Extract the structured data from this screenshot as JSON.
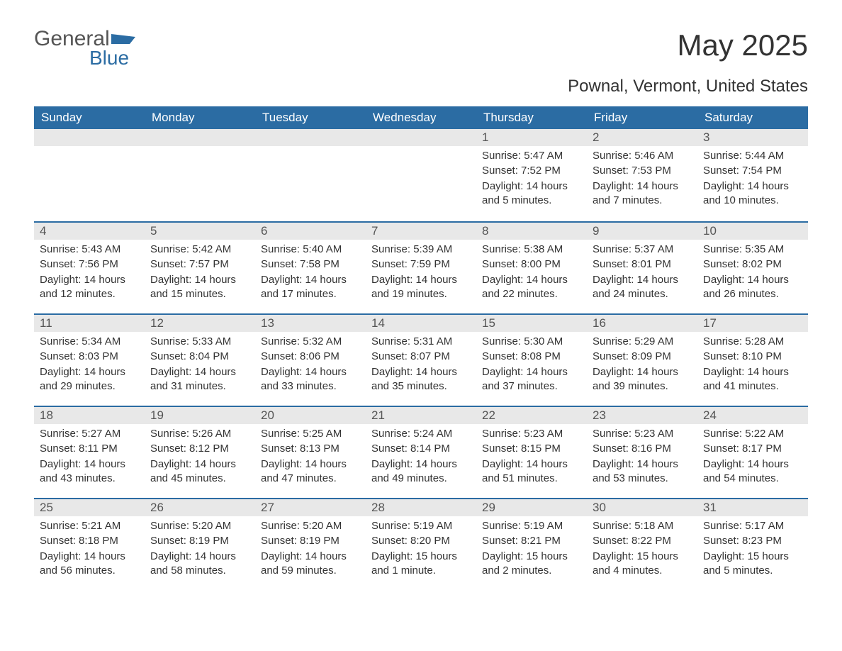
{
  "logo": {
    "text1": "General",
    "text2": "Blue"
  },
  "title": "May 2025",
  "location": "Pownal, Vermont, United States",
  "colors": {
    "brand": "#2b6ca3",
    "daynum_bg": "#e8e8e8",
    "text": "#333333",
    "logo_gray": "#555555"
  },
  "day_headers": [
    "Sunday",
    "Monday",
    "Tuesday",
    "Wednesday",
    "Thursday",
    "Friday",
    "Saturday"
  ],
  "weeks": [
    [
      null,
      null,
      null,
      null,
      {
        "n": "1",
        "sunrise": "5:47 AM",
        "sunset": "7:52 PM",
        "daylight": "14 hours and 5 minutes."
      },
      {
        "n": "2",
        "sunrise": "5:46 AM",
        "sunset": "7:53 PM",
        "daylight": "14 hours and 7 minutes."
      },
      {
        "n": "3",
        "sunrise": "5:44 AM",
        "sunset": "7:54 PM",
        "daylight": "14 hours and 10 minutes."
      }
    ],
    [
      {
        "n": "4",
        "sunrise": "5:43 AM",
        "sunset": "7:56 PM",
        "daylight": "14 hours and 12 minutes."
      },
      {
        "n": "5",
        "sunrise": "5:42 AM",
        "sunset": "7:57 PM",
        "daylight": "14 hours and 15 minutes."
      },
      {
        "n": "6",
        "sunrise": "5:40 AM",
        "sunset": "7:58 PM",
        "daylight": "14 hours and 17 minutes."
      },
      {
        "n": "7",
        "sunrise": "5:39 AM",
        "sunset": "7:59 PM",
        "daylight": "14 hours and 19 minutes."
      },
      {
        "n": "8",
        "sunrise": "5:38 AM",
        "sunset": "8:00 PM",
        "daylight": "14 hours and 22 minutes."
      },
      {
        "n": "9",
        "sunrise": "5:37 AM",
        "sunset": "8:01 PM",
        "daylight": "14 hours and 24 minutes."
      },
      {
        "n": "10",
        "sunrise": "5:35 AM",
        "sunset": "8:02 PM",
        "daylight": "14 hours and 26 minutes."
      }
    ],
    [
      {
        "n": "11",
        "sunrise": "5:34 AM",
        "sunset": "8:03 PM",
        "daylight": "14 hours and 29 minutes."
      },
      {
        "n": "12",
        "sunrise": "5:33 AM",
        "sunset": "8:04 PM",
        "daylight": "14 hours and 31 minutes."
      },
      {
        "n": "13",
        "sunrise": "5:32 AM",
        "sunset": "8:06 PM",
        "daylight": "14 hours and 33 minutes."
      },
      {
        "n": "14",
        "sunrise": "5:31 AM",
        "sunset": "8:07 PM",
        "daylight": "14 hours and 35 minutes."
      },
      {
        "n": "15",
        "sunrise": "5:30 AM",
        "sunset": "8:08 PM",
        "daylight": "14 hours and 37 minutes."
      },
      {
        "n": "16",
        "sunrise": "5:29 AM",
        "sunset": "8:09 PM",
        "daylight": "14 hours and 39 minutes."
      },
      {
        "n": "17",
        "sunrise": "5:28 AM",
        "sunset": "8:10 PM",
        "daylight": "14 hours and 41 minutes."
      }
    ],
    [
      {
        "n": "18",
        "sunrise": "5:27 AM",
        "sunset": "8:11 PM",
        "daylight": "14 hours and 43 minutes."
      },
      {
        "n": "19",
        "sunrise": "5:26 AM",
        "sunset": "8:12 PM",
        "daylight": "14 hours and 45 minutes."
      },
      {
        "n": "20",
        "sunrise": "5:25 AM",
        "sunset": "8:13 PM",
        "daylight": "14 hours and 47 minutes."
      },
      {
        "n": "21",
        "sunrise": "5:24 AM",
        "sunset": "8:14 PM",
        "daylight": "14 hours and 49 minutes."
      },
      {
        "n": "22",
        "sunrise": "5:23 AM",
        "sunset": "8:15 PM",
        "daylight": "14 hours and 51 minutes."
      },
      {
        "n": "23",
        "sunrise": "5:23 AM",
        "sunset": "8:16 PM",
        "daylight": "14 hours and 53 minutes."
      },
      {
        "n": "24",
        "sunrise": "5:22 AM",
        "sunset": "8:17 PM",
        "daylight": "14 hours and 54 minutes."
      }
    ],
    [
      {
        "n": "25",
        "sunrise": "5:21 AM",
        "sunset": "8:18 PM",
        "daylight": "14 hours and 56 minutes."
      },
      {
        "n": "26",
        "sunrise": "5:20 AM",
        "sunset": "8:19 PM",
        "daylight": "14 hours and 58 minutes."
      },
      {
        "n": "27",
        "sunrise": "5:20 AM",
        "sunset": "8:19 PM",
        "daylight": "14 hours and 59 minutes."
      },
      {
        "n": "28",
        "sunrise": "5:19 AM",
        "sunset": "8:20 PM",
        "daylight": "15 hours and 1 minute."
      },
      {
        "n": "29",
        "sunrise": "5:19 AM",
        "sunset": "8:21 PM",
        "daylight": "15 hours and 2 minutes."
      },
      {
        "n": "30",
        "sunrise": "5:18 AM",
        "sunset": "8:22 PM",
        "daylight": "15 hours and 4 minutes."
      },
      {
        "n": "31",
        "sunrise": "5:17 AM",
        "sunset": "8:23 PM",
        "daylight": "15 hours and 5 minutes."
      }
    ]
  ],
  "labels": {
    "sunrise": "Sunrise:",
    "sunset": "Sunset:",
    "daylight": "Daylight:"
  }
}
